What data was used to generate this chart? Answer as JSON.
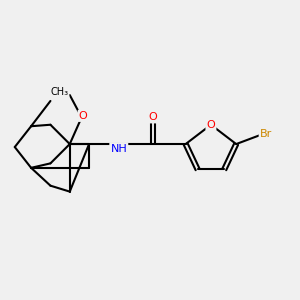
{
  "background_color": "#f0f0f0",
  "bond_color": "#000000",
  "atom_colors": {
    "O": "#ff0000",
    "N": "#0000ff",
    "Br": "#cc8800",
    "C": "#000000"
  },
  "figsize": [
    3.0,
    3.0
  ],
  "dpi": 100
}
